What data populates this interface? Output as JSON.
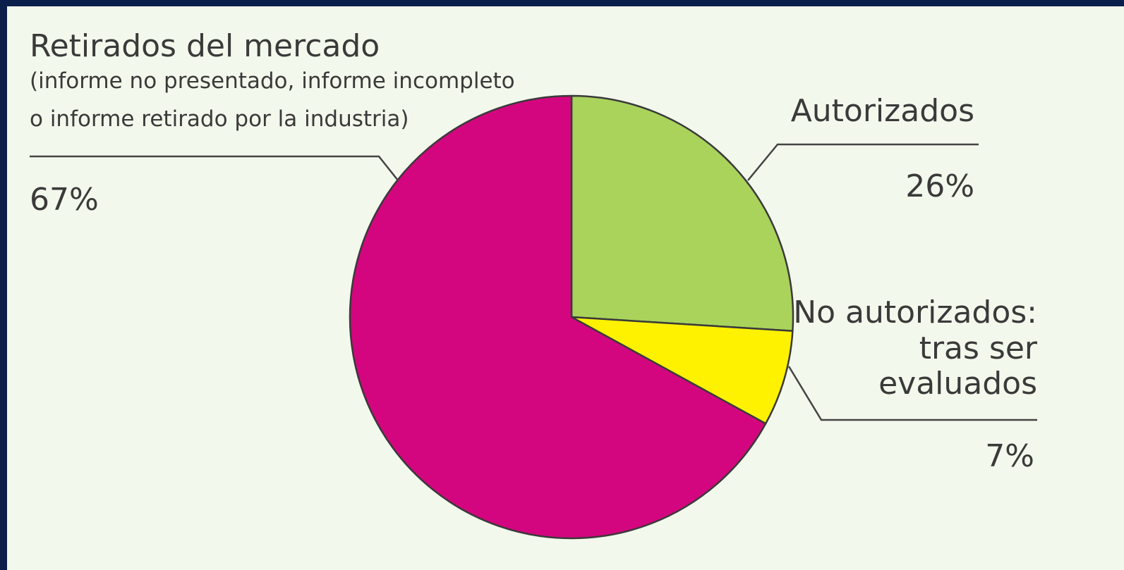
{
  "chart_data": {
    "type": "pie",
    "start_angle_deg": 0,
    "direction": "clockwise",
    "slices": [
      {
        "key": "autorizados",
        "label": "Autorizados",
        "value": 26,
        "value_label": "26%",
        "color": "#a9d35b"
      },
      {
        "key": "no_autorizados",
        "label_lines": [
          "No autorizados:",
          "tras ser",
          "evaluados"
        ],
        "value": 7,
        "value_label": "7%",
        "color": "#fff200"
      },
      {
        "key": "retirados",
        "label": "Retirados del mercado",
        "sublabel_lines": [
          "(informe no presentado, informe incompleto",
          "o informe retirado por la industria)"
        ],
        "value": 67,
        "value_label": "67%",
        "color": "#d4067f"
      }
    ],
    "colors": {
      "background": "#f3f8ec",
      "frame": "#0b1f4d",
      "outline": "#3a3a3a",
      "text": "#3a3a3a"
    }
  }
}
